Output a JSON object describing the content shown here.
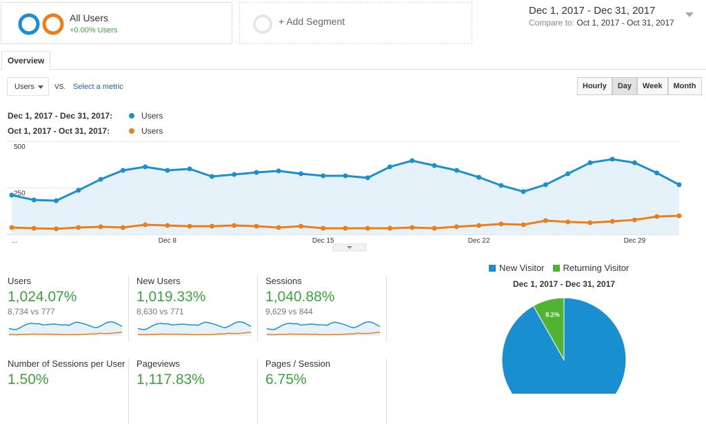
{
  "header": {
    "segment": {
      "name": "All Users",
      "change": "+0.00% Users"
    },
    "add_segment": "+ Add Segment",
    "date_range": "Dec 1, 2017 - Dec 31, 2017",
    "compare_label": "Compare to:",
    "compare_range": "Oct 1, 2017 - Oct 31, 2017"
  },
  "tabs": [
    "Overview"
  ],
  "controls": {
    "metric": "Users",
    "vs": "VS.",
    "select_metric": "Select a metric",
    "granularity": [
      "Hourly",
      "Day",
      "Week",
      "Month"
    ],
    "active": "Day"
  },
  "chart_data": [
    {
      "type": "line",
      "categories": [
        "...",
        null,
        null,
        null,
        null,
        null,
        null,
        "Dec 8",
        null,
        null,
        null,
        null,
        null,
        null,
        "Dec 15",
        null,
        null,
        null,
        null,
        null,
        null,
        "Dec 22",
        null,
        null,
        null,
        null,
        null,
        null,
        "Dec 29",
        null,
        null
      ],
      "series": [
        {
          "period": "Dec 1, 2017 - Dec 31, 2017:",
          "name": "Users",
          "color": "#1a8fd0",
          "values": [
            211,
            185,
            181,
            237,
            296,
            344,
            363,
            344,
            352,
            311,
            322,
            333,
            341,
            326,
            315,
            315,
            304,
            363,
            396,
            370,
            344,
            307,
            263,
            230,
            267,
            326,
            385,
            404,
            385,
            330,
            267
          ]
        },
        {
          "period": "Oct 1, 2017 - Oct 31, 2017:",
          "name": "Users",
          "color": "#ed7e17",
          "values": [
            37,
            33,
            30,
            37,
            41,
            37,
            52,
            48,
            44,
            44,
            48,
            44,
            37,
            44,
            33,
            33,
            33,
            33,
            37,
            33,
            41,
            48,
            56,
            52,
            74,
            67,
            63,
            70,
            78,
            96,
            100
          ]
        }
      ],
      "ylim": [
        0,
        500
      ],
      "yticks": [
        250,
        500
      ],
      "grid": true,
      "area": true
    },
    {
      "type": "pie",
      "title": "Dec 1, 2017 - Dec 31, 2017",
      "categories": [
        "New Visitor",
        "Returning Visitor"
      ],
      "values": [
        91.8,
        8.2
      ],
      "value_labels": [
        null,
        "8.2%"
      ],
      "colors": [
        "#1a8fd0",
        "#50b432"
      ],
      "legend": "top"
    }
  ],
  "metrics": [
    {
      "label": "Users",
      "value": "1,024.07%",
      "compare": "8,734 vs 777"
    },
    {
      "label": "New Users",
      "value": "1,019.33%",
      "compare": "8,630 vs 771"
    },
    {
      "label": "Sessions",
      "value": "1,040.88%",
      "compare": "9,629 vs 844"
    },
    {
      "label": "Number of Sessions per User",
      "value": "1.50%"
    },
    {
      "label": "Pageviews",
      "value": "1,117.83%"
    },
    {
      "label": "Pages / Session",
      "value": "6.75%"
    }
  ]
}
